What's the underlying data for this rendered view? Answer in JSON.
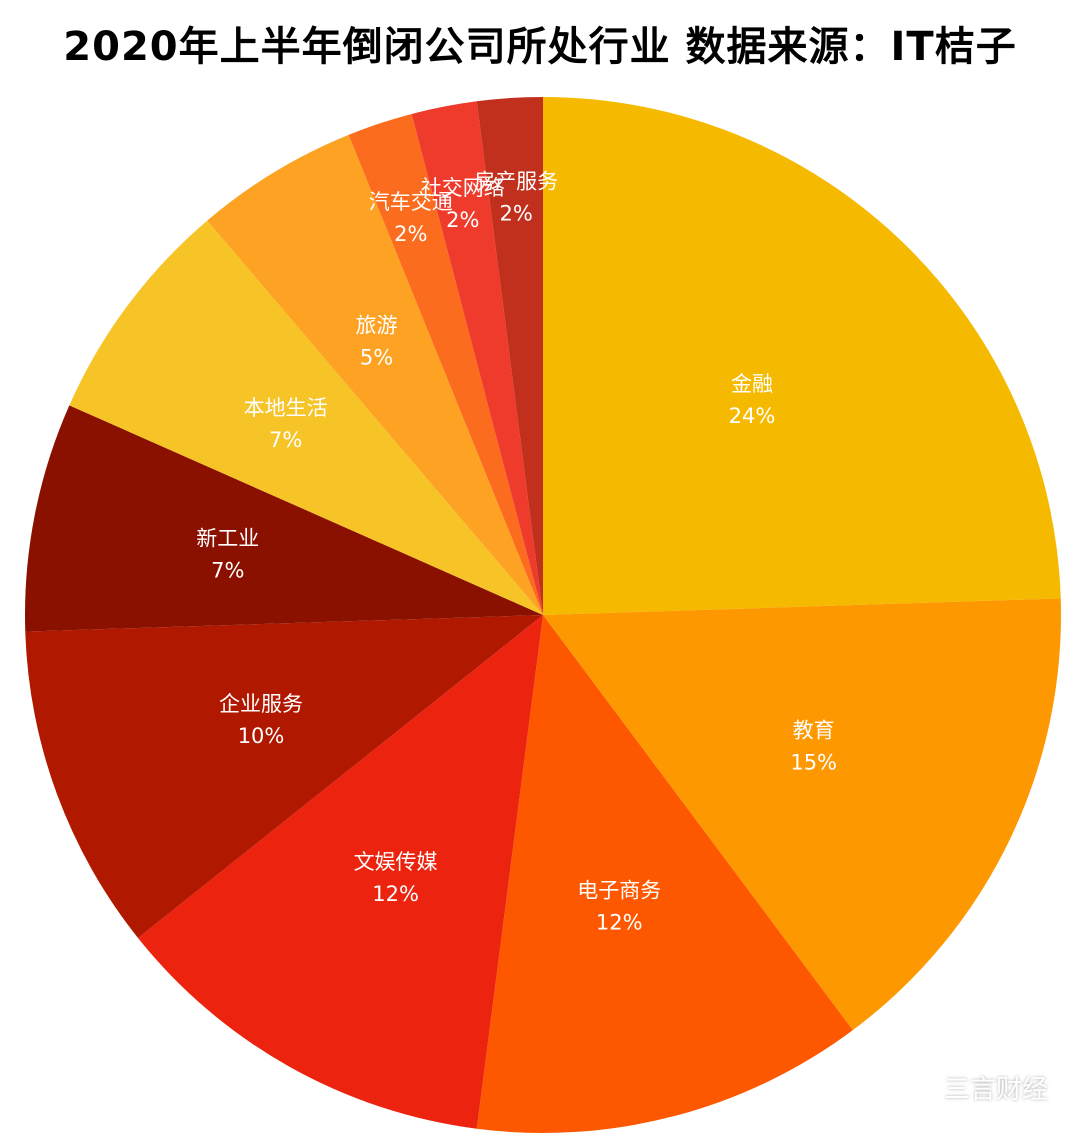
{
  "colors": {
    "background": "#ffffff",
    "title": "#000000",
    "label": "#ffffff"
  },
  "chart_data": {
    "type": "pie",
    "title": "2020年上半年倒闭公司所处行业 数据来源：IT桔子",
    "start_angle_deg": 0,
    "direction": "clockwise",
    "slices": [
      {
        "label": "金融",
        "value": 24,
        "value_label": "24%",
        "color": "#F5BA00"
      },
      {
        "label": "教育",
        "value": 15,
        "value_label": "15%",
        "color": "#FE9800"
      },
      {
        "label": "电子商务",
        "value": 12,
        "value_label": "12%",
        "color": "#FD5800"
      },
      {
        "label": "文娱传媒",
        "value": 12,
        "value_label": "12%",
        "color": "#EB230F"
      },
      {
        "label": "企业服务",
        "value": 10,
        "value_label": "10%",
        "color": "#B11800"
      },
      {
        "label": "新工业",
        "value": 7,
        "value_label": "7%",
        "color": "#8A1100"
      },
      {
        "label": "本地生活",
        "value": 7,
        "value_label": "7%",
        "color": "#F7C427"
      },
      {
        "label": "旅游",
        "value": 5,
        "value_label": "5%",
        "color": "#FDA223"
      },
      {
        "label": "汽车交通",
        "value": 2,
        "value_label": "2%",
        "color": "#FC6C1F"
      },
      {
        "label": "社交网络",
        "value": 2,
        "value_label": "2%",
        "color": "#EF3B2C"
      },
      {
        "label": "房产服务",
        "value": 2,
        "value_label": "2%",
        "color": "#C1301D"
      }
    ]
  },
  "watermark": {
    "text": "三言财经",
    "icon": "wechat-icon"
  }
}
